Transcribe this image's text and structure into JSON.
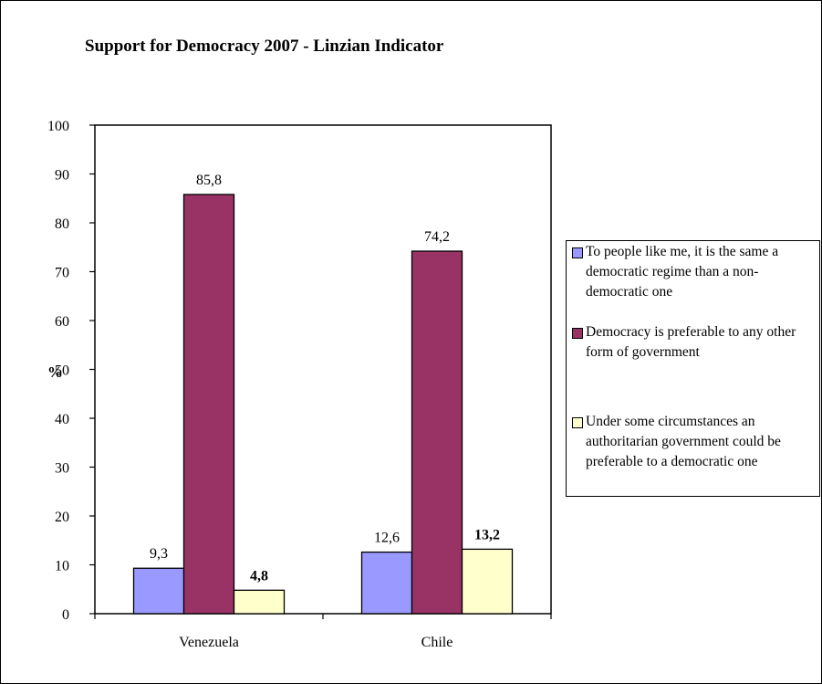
{
  "chart_data": {
    "type": "bar",
    "title": "Support for Democracy 2007 - Linzian Indicator",
    "ylabel": "%",
    "xlabel": "",
    "ylim": [
      0,
      100
    ],
    "yticks": [
      "0",
      "10",
      "20",
      "30",
      "40",
      "50",
      "60",
      "70",
      "80",
      "90",
      "100"
    ],
    "categories": [
      "Venezuela",
      "Chile"
    ],
    "legend_position": "right",
    "grid": false,
    "series": [
      {
        "name": "To people like me, it is the same a democratic regime than a non-democratic one",
        "color": "#9999ff",
        "values": [
          9.3,
          12.6
        ],
        "labels": [
          "9,3",
          "12,6"
        ],
        "label_bold": false
      },
      {
        "name": "Democracy is preferable to any other form of government",
        "color": "#993366",
        "values": [
          85.8,
          74.2
        ],
        "labels": [
          "85,8",
          "74,2"
        ],
        "label_bold": false
      },
      {
        "name": "Under some circumstances an authoritarian government could be preferable to a democratic one",
        "color": "#ffffcc",
        "values": [
          4.8,
          13.2
        ],
        "labels": [
          "4,8",
          "13,2"
        ],
        "label_bold": true
      }
    ]
  }
}
